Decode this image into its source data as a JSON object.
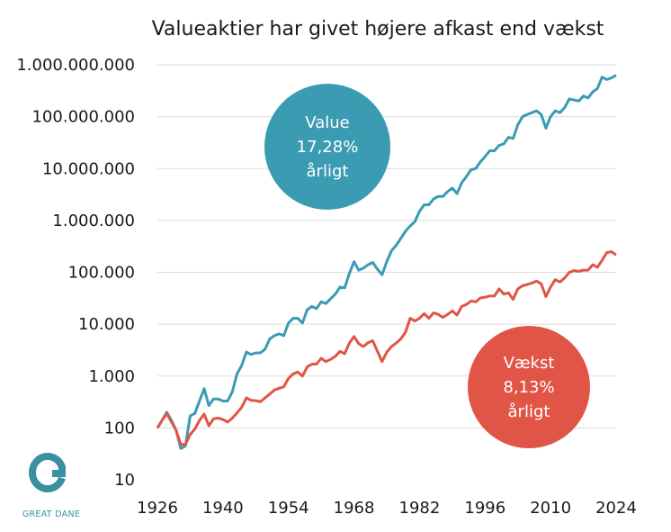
{
  "chart_data": {
    "type": "line",
    "title": "Valueaktier har givet højere afkast end vækst",
    "xlabel": "",
    "ylabel": "",
    "y_scale": "log",
    "ylim": [
      10,
      1000000000
    ],
    "xlim": [
      1926,
      2024
    ],
    "grid": true,
    "x_ticks": [
      "1926",
      "1940",
      "1954",
      "1968",
      "1982",
      "1996",
      "2010",
      "2024"
    ],
    "y_ticks": [
      "10",
      "100",
      "1.000",
      "10.000",
      "100.000",
      "1.000.000",
      "10.000.000",
      "100.000.000",
      "1.000.000.000"
    ],
    "series": [
      {
        "name": "Value",
        "color": "#3a9bb2",
        "points": [
          [
            1926,
            100
          ],
          [
            1927,
            140
          ],
          [
            1928,
            200
          ],
          [
            1929,
            140
          ],
          [
            1930,
            90
          ],
          [
            1931,
            40
          ],
          [
            1932,
            45
          ],
          [
            1933,
            170
          ],
          [
            1934,
            190
          ],
          [
            1935,
            330
          ],
          [
            1936,
            570
          ],
          [
            1937,
            270
          ],
          [
            1938,
            360
          ],
          [
            1939,
            360
          ],
          [
            1940,
            330
          ],
          [
            1941,
            330
          ],
          [
            1942,
            500
          ],
          [
            1943,
            1100
          ],
          [
            1944,
            1600
          ],
          [
            1945,
            2900
          ],
          [
            1946,
            2600
          ],
          [
            1947,
            2800
          ],
          [
            1948,
            2800
          ],
          [
            1949,
            3300
          ],
          [
            1950,
            5200
          ],
          [
            1951,
            6000
          ],
          [
            1952,
            6500
          ],
          [
            1953,
            6000
          ],
          [
            1954,
            10500
          ],
          [
            1955,
            13000
          ],
          [
            1956,
            13000
          ],
          [
            1957,
            10500
          ],
          [
            1958,
            19000
          ],
          [
            1959,
            22000
          ],
          [
            1960,
            20000
          ],
          [
            1961,
            27000
          ],
          [
            1962,
            25000
          ],
          [
            1963,
            31000
          ],
          [
            1964,
            38000
          ],
          [
            1965,
            52000
          ],
          [
            1966,
            50000
          ],
          [
            1967,
            95000
          ],
          [
            1968,
            160000
          ],
          [
            1969,
            110000
          ],
          [
            1970,
            120000
          ],
          [
            1971,
            140000
          ],
          [
            1972,
            155000
          ],
          [
            1973,
            115000
          ],
          [
            1974,
            90000
          ],
          [
            1975,
            160000
          ],
          [
            1976,
            260000
          ],
          [
            1977,
            330000
          ],
          [
            1978,
            450000
          ],
          [
            1979,
            620000
          ],
          [
            1980,
            780000
          ],
          [
            1981,
            950000
          ],
          [
            1982,
            1500000
          ],
          [
            1983,
            2000000
          ],
          [
            1984,
            2000000
          ],
          [
            1985,
            2600000
          ],
          [
            1986,
            2900000
          ],
          [
            1987,
            2900000
          ],
          [
            1988,
            3600000
          ],
          [
            1989,
            4200000
          ],
          [
            1990,
            3300000
          ],
          [
            1991,
            5300000
          ],
          [
            1992,
            7000000
          ],
          [
            1993,
            9500000
          ],
          [
            1994,
            10000000
          ],
          [
            1995,
            13500000
          ],
          [
            1996,
            17000000
          ],
          [
            1997,
            22000000
          ],
          [
            1998,
            22000000
          ],
          [
            1999,
            28000000
          ],
          [
            2000,
            30000000
          ],
          [
            2001,
            40000000
          ],
          [
            2002,
            38000000
          ],
          [
            2003,
            70000000
          ],
          [
            2004,
            100000000
          ],
          [
            2005,
            110000000
          ],
          [
            2006,
            120000000
          ],
          [
            2007,
            130000000
          ],
          [
            2008,
            110000000
          ],
          [
            2009,
            60000000
          ],
          [
            2010,
            100000000
          ],
          [
            2011,
            130000000
          ],
          [
            2012,
            120000000
          ],
          [
            2013,
            150000000
          ],
          [
            2014,
            220000000
          ],
          [
            2015,
            210000000
          ],
          [
            2016,
            200000000
          ],
          [
            2017,
            250000000
          ],
          [
            2018,
            230000000
          ],
          [
            2019,
            300000000
          ],
          [
            2020,
            350000000
          ],
          [
            2021,
            580000000
          ],
          [
            2022,
            520000000
          ],
          [
            2023,
            560000000
          ],
          [
            2024,
            630000000
          ]
        ]
      },
      {
        "name": "Vækst",
        "color": "#e05546",
        "points": [
          [
            1926,
            100
          ],
          [
            1927,
            140
          ],
          [
            1928,
            190
          ],
          [
            1929,
            130
          ],
          [
            1930,
            90
          ],
          [
            1931,
            48
          ],
          [
            1932,
            48
          ],
          [
            1933,
            75
          ],
          [
            1934,
            95
          ],
          [
            1935,
            140
          ],
          [
            1936,
            185
          ],
          [
            1937,
            110
          ],
          [
            1938,
            150
          ],
          [
            1939,
            155
          ],
          [
            1940,
            145
          ],
          [
            1941,
            130
          ],
          [
            1942,
            155
          ],
          [
            1943,
            195
          ],
          [
            1944,
            250
          ],
          [
            1945,
            380
          ],
          [
            1946,
            340
          ],
          [
            1947,
            335
          ],
          [
            1948,
            320
          ],
          [
            1949,
            380
          ],
          [
            1950,
            450
          ],
          [
            1951,
            540
          ],
          [
            1952,
            580
          ],
          [
            1953,
            620
          ],
          [
            1954,
            900
          ],
          [
            1955,
            1100
          ],
          [
            1956,
            1200
          ],
          [
            1957,
            1000
          ],
          [
            1958,
            1500
          ],
          [
            1959,
            1700
          ],
          [
            1960,
            1700
          ],
          [
            1961,
            2200
          ],
          [
            1962,
            1900
          ],
          [
            1963,
            2100
          ],
          [
            1964,
            2400
          ],
          [
            1965,
            3000
          ],
          [
            1966,
            2700
          ],
          [
            1967,
            4300
          ],
          [
            1968,
            5800
          ],
          [
            1969,
            4200
          ],
          [
            1970,
            3700
          ],
          [
            1971,
            4400
          ],
          [
            1972,
            4800
          ],
          [
            1973,
            3000
          ],
          [
            1974,
            1900
          ],
          [
            1975,
            2900
          ],
          [
            1976,
            3700
          ],
          [
            1977,
            4300
          ],
          [
            1978,
            5200
          ],
          [
            1979,
            7000
          ],
          [
            1980,
            13000
          ],
          [
            1981,
            11500
          ],
          [
            1982,
            13000
          ],
          [
            1983,
            16000
          ],
          [
            1984,
            13000
          ],
          [
            1985,
            16500
          ],
          [
            1986,
            15500
          ],
          [
            1987,
            13500
          ],
          [
            1988,
            15500
          ],
          [
            1989,
            18000
          ],
          [
            1990,
            15000
          ],
          [
            1991,
            22000
          ],
          [
            1992,
            24000
          ],
          [
            1993,
            28000
          ],
          [
            1994,
            27000
          ],
          [
            1995,
            32000
          ],
          [
            1996,
            33000
          ],
          [
            1997,
            35000
          ],
          [
            1998,
            35000
          ],
          [
            1999,
            48000
          ],
          [
            2000,
            38000
          ],
          [
            2001,
            40000
          ],
          [
            2002,
            30000
          ],
          [
            2003,
            48000
          ],
          [
            2004,
            55000
          ],
          [
            2005,
            58000
          ],
          [
            2006,
            62000
          ],
          [
            2007,
            68000
          ],
          [
            2008,
            60000
          ],
          [
            2009,
            34000
          ],
          [
            2010,
            52000
          ],
          [
            2011,
            72000
          ],
          [
            2012,
            65000
          ],
          [
            2013,
            78000
          ],
          [
            2014,
            100000
          ],
          [
            2015,
            108000
          ],
          [
            2016,
            104000
          ],
          [
            2017,
            110000
          ],
          [
            2018,
            110000
          ],
          [
            2019,
            140000
          ],
          [
            2020,
            125000
          ],
          [
            2021,
            170000
          ],
          [
            2022,
            240000
          ],
          [
            2023,
            250000
          ],
          [
            2024,
            215000
          ]
        ]
      }
    ],
    "annotations": [
      {
        "series": "Value",
        "color": "#3a9bb2",
        "lines": [
          "Value",
          "17,28%",
          "årligt"
        ]
      },
      {
        "series": "Vækst",
        "color": "#e05546",
        "lines": [
          "Vækst",
          "8,13%",
          "årligt"
        ]
      }
    ]
  },
  "logo": {
    "text": "GREAT DANE",
    "color": "#3a8fa1"
  }
}
